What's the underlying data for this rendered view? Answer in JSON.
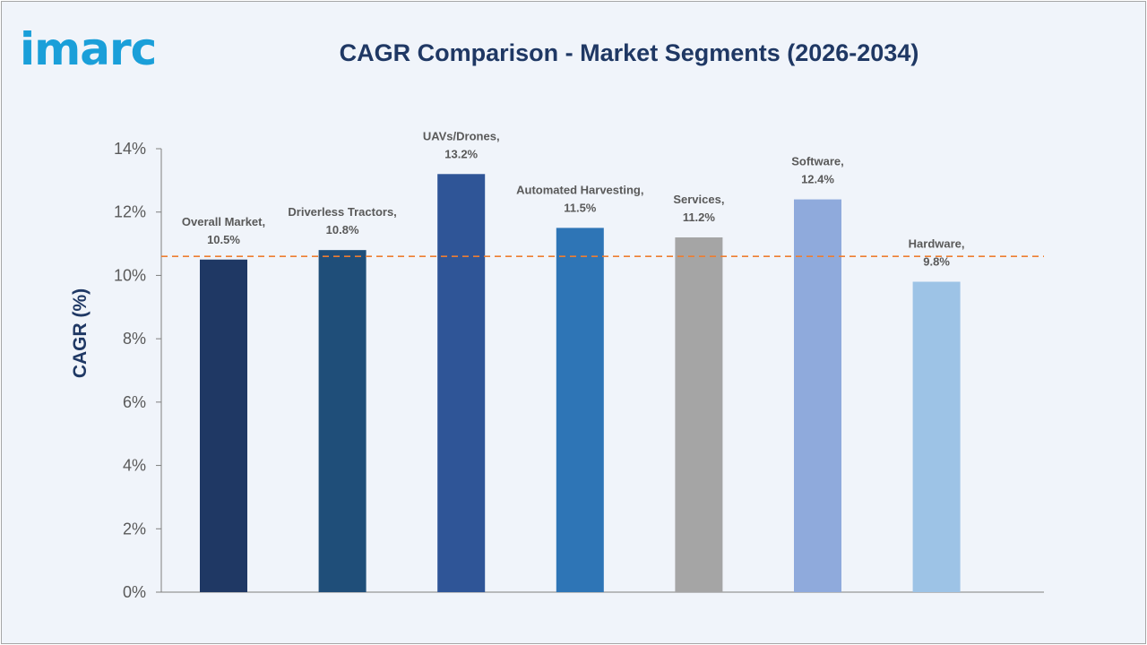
{
  "logo": "imarc",
  "chart_data": {
    "type": "bar",
    "title": "CAGR Comparison - Market Segments (2026-2034)",
    "xlabel": "",
    "ylabel": "CAGR (%)",
    "ylim": [
      0,
      14
    ],
    "yticks": [
      "0%",
      "2%",
      "4%",
      "6%",
      "8%",
      "10%",
      "12%",
      "14%"
    ],
    "grid": false,
    "categories": [
      "Overall Market",
      "Driverless Tractors",
      "UAVs/Drones",
      "Automated Harvesting",
      "Services",
      "Software",
      "Hardware"
    ],
    "values": [
      10.5,
      10.8,
      13.2,
      11.5,
      11.2,
      12.4,
      9.8
    ],
    "data_labels": [
      [
        "Overall Market,",
        "10.5%"
      ],
      [
        "Driverless Tractors,",
        "10.8%"
      ],
      [
        "UAVs/Drones,",
        "13.2%"
      ],
      [
        "Automated Harvesting,",
        "11.5%"
      ],
      [
        "Services,",
        "11.2%"
      ],
      [
        "Software,",
        "12.4%"
      ],
      [
        "Hardware,",
        "9.8%"
      ]
    ],
    "colors": [
      "#1f3864",
      "#1f4e79",
      "#2f5597",
      "#2e75b6",
      "#a5a5a5",
      "#8faadc",
      "#9dc3e6"
    ],
    "reference_line": {
      "value": 10.6,
      "color": "#ed7d31",
      "style": "dashed"
    }
  }
}
